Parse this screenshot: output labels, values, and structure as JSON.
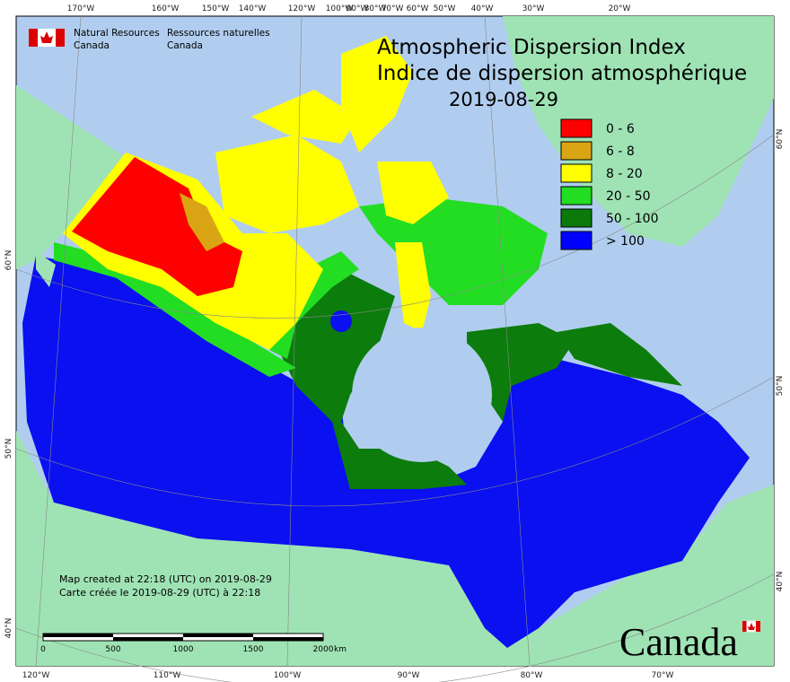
{
  "header": {
    "agency_en": "Natural Resources",
    "agency_en_2": "Canada",
    "agency_fr": "Ressources naturelles",
    "agency_fr_2": "Canada"
  },
  "title": {
    "line1": "Atmospheric Dispersion Index",
    "line2": "Indice de dispersion atmosphérique",
    "date": "2019-08-29"
  },
  "legend": {
    "items": [
      {
        "label": "0 - 6",
        "color": "#ff0000"
      },
      {
        "label": "6 - 8",
        "color": "#d9a514"
      },
      {
        "label": "8 - 20",
        "color": "#ffff00"
      },
      {
        "label": "20 - 50",
        "color": "#22dd22"
      },
      {
        "label": "50 - 100",
        "color": "#0b7a0b"
      },
      {
        "label": "> 100",
        "color": "#0000ff"
      }
    ]
  },
  "graticule": {
    "top": [
      "170°W",
      "160°W",
      "150°W",
      "140°W",
      "120°W",
      "100°W",
      "90°W",
      "80°W",
      "70°W",
      "60°W",
      "50°W",
      "40°W",
      "30°W",
      "20°W"
    ],
    "bottom": [
      "120°W",
      "110°W",
      "100°W",
      "90°W",
      "80°W",
      "70°W"
    ],
    "left": [
      "60°N",
      "50°N",
      "40°N"
    ],
    "right": [
      "60°N",
      "50°N",
      "40°N"
    ]
  },
  "notes": {
    "line1": "Map created at 22:18 (UTC) on 2019-08-29",
    "line2": "Carte créée le 2019-08-29 (UTC) à 22:18"
  },
  "scale_bar": {
    "labels": [
      "0",
      "500",
      "1000",
      "1500",
      "2000"
    ],
    "unit": "km"
  },
  "wordmark": "Canada"
}
